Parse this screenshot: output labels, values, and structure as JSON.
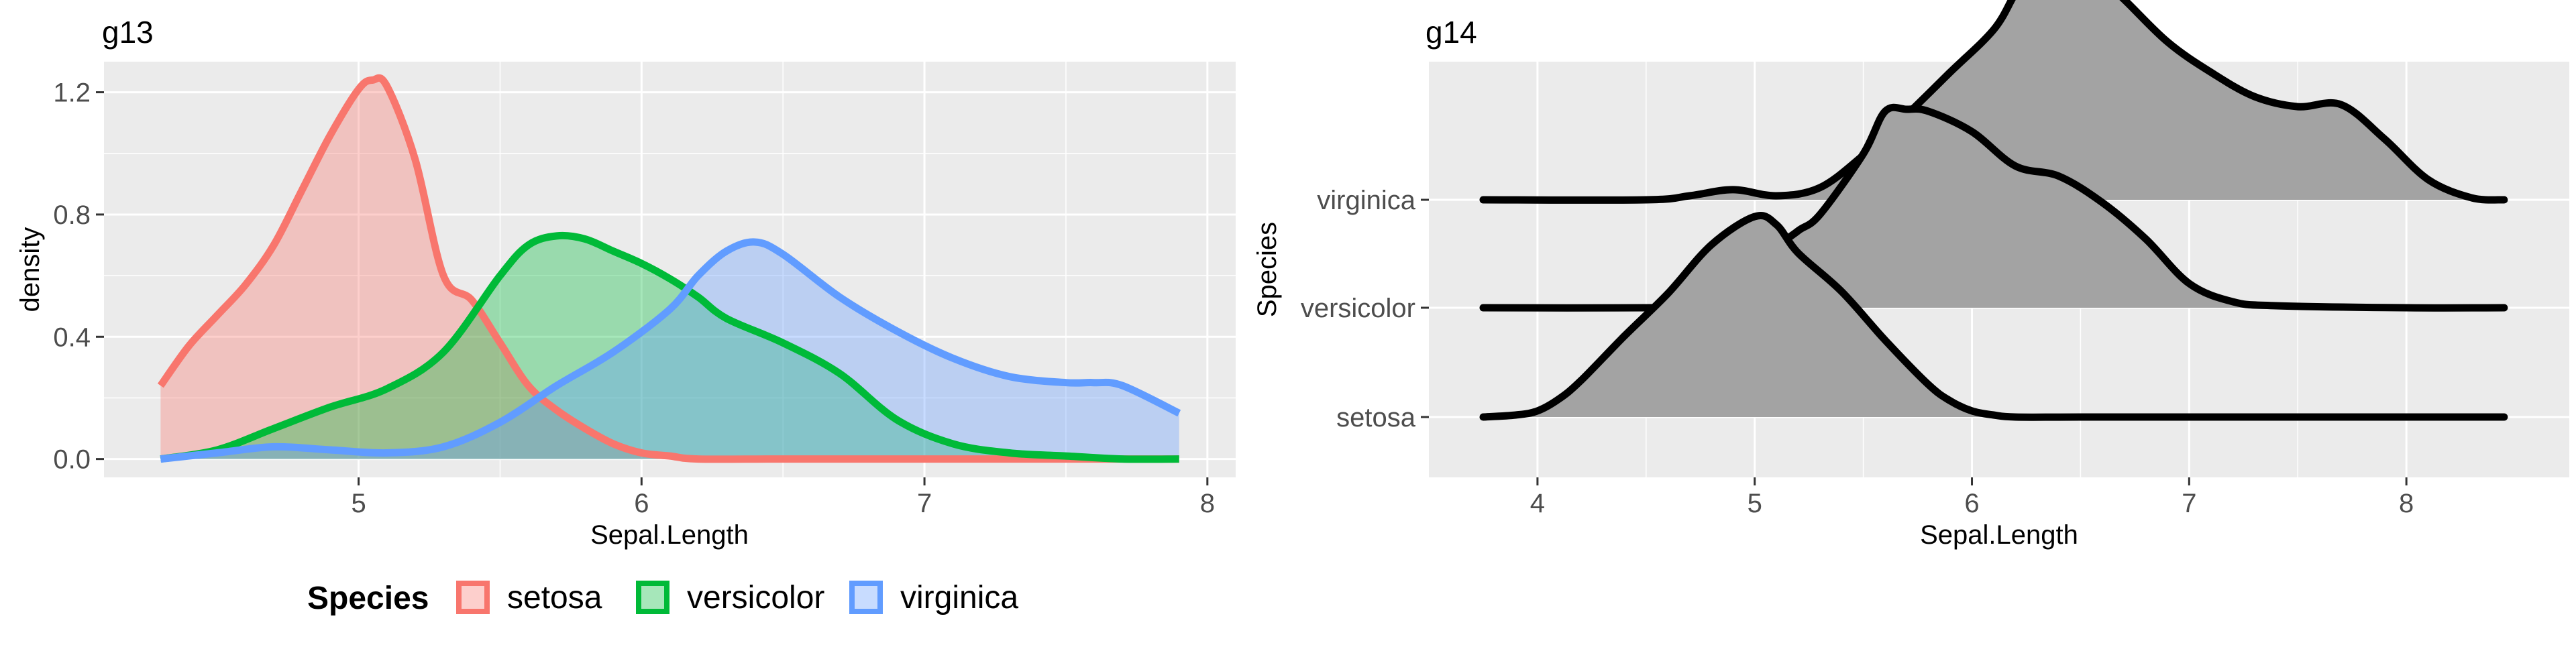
{
  "chart_data": [
    {
      "type": "area",
      "title": "g13",
      "xlabel": "Sepal.Length",
      "ylabel": "density",
      "xlim": [
        4.1,
        8.1
      ],
      "ylim": [
        -0.06,
        1.3
      ],
      "x_ticks": [
        5,
        6,
        7,
        8
      ],
      "y_ticks": [
        0.0,
        0.4,
        0.8,
        1.2
      ],
      "y_tick_labels": [
        "0.0",
        "0.4",
        "0.8",
        "1.2"
      ],
      "grid": true,
      "legend": {
        "title": "Species",
        "position": "bottom",
        "entries": [
          "setosa",
          "versicolor",
          "virginica"
        ]
      },
      "series": [
        {
          "name": "setosa",
          "color": "#F8766D",
          "x": [
            4.3,
            4.4,
            4.5,
            4.6,
            4.7,
            4.8,
            4.9,
            5.0,
            5.05,
            5.1,
            5.2,
            5.3,
            5.4,
            5.5,
            5.6,
            5.7,
            5.8,
            5.9,
            6.0,
            6.1,
            6.2,
            6.5,
            7.0,
            7.5,
            7.9
          ],
          "y": [
            0.24,
            0.37,
            0.47,
            0.57,
            0.7,
            0.88,
            1.06,
            1.21,
            1.24,
            1.22,
            0.98,
            0.6,
            0.52,
            0.38,
            0.24,
            0.16,
            0.1,
            0.05,
            0.02,
            0.01,
            0.0,
            0.0,
            0.0,
            0.0,
            0.0
          ]
        },
        {
          "name": "versicolor",
          "color": "#00BA38",
          "x": [
            4.3,
            4.5,
            4.7,
            4.9,
            5.1,
            5.3,
            5.5,
            5.6,
            5.7,
            5.8,
            5.9,
            6.0,
            6.1,
            6.2,
            6.3,
            6.5,
            6.7,
            6.9,
            7.1,
            7.3,
            7.5,
            7.7,
            7.9
          ],
          "y": [
            0.0,
            0.03,
            0.1,
            0.17,
            0.23,
            0.35,
            0.6,
            0.7,
            0.73,
            0.72,
            0.68,
            0.64,
            0.59,
            0.53,
            0.46,
            0.38,
            0.28,
            0.13,
            0.05,
            0.02,
            0.01,
            0.0,
            0.0
          ]
        },
        {
          "name": "virginica",
          "color": "#619CFF",
          "x": [
            4.3,
            4.5,
            4.7,
            4.9,
            5.1,
            5.3,
            5.5,
            5.7,
            5.9,
            6.1,
            6.2,
            6.3,
            6.4,
            6.5,
            6.7,
            6.9,
            7.1,
            7.3,
            7.5,
            7.6,
            7.7,
            7.9
          ],
          "y": [
            0.0,
            0.02,
            0.04,
            0.03,
            0.02,
            0.04,
            0.12,
            0.24,
            0.35,
            0.49,
            0.6,
            0.68,
            0.71,
            0.67,
            0.53,
            0.42,
            0.33,
            0.27,
            0.25,
            0.25,
            0.24,
            0.15
          ]
        }
      ]
    },
    {
      "type": "area",
      "title": "g14",
      "xlabel": "Sepal.Length",
      "ylabel": "Species",
      "xlim": [
        3.5,
        8.75
      ],
      "x_ticks": [
        4,
        5,
        6,
        7,
        8
      ],
      "categories": [
        "setosa",
        "versicolor",
        "virginica"
      ],
      "grid": true,
      "fill_color": "#A3A3A3",
      "line_color": "#000000",
      "ridges": [
        {
          "name": "setosa",
          "x": [
            3.75,
            3.9,
            4.0,
            4.1,
            4.2,
            4.4,
            4.6,
            4.8,
            5.0,
            5.1,
            5.2,
            5.4,
            5.6,
            5.8,
            5.9,
            6.0,
            6.1,
            6.2,
            6.5,
            7.0,
            8.0,
            8.45
          ],
          "h": [
            0.0,
            0.01,
            0.03,
            0.09,
            0.18,
            0.4,
            0.61,
            0.85,
            0.99,
            0.95,
            0.81,
            0.62,
            0.38,
            0.16,
            0.08,
            0.03,
            0.01,
            0.0,
            0.0,
            0.0,
            0.0,
            0.0
          ]
        },
        {
          "name": "versicolor",
          "x": [
            3.75,
            4.5,
            4.7,
            4.9,
            5.0,
            5.1,
            5.2,
            5.3,
            5.5,
            5.6,
            5.7,
            5.8,
            6.0,
            6.2,
            6.4,
            6.6,
            6.8,
            7.0,
            7.2,
            7.4,
            8.0,
            8.45
          ],
          "h": [
            0.0,
            0.0,
            0.01,
            0.05,
            0.12,
            0.29,
            0.38,
            0.46,
            0.76,
            0.97,
            0.98,
            0.97,
            0.87,
            0.7,
            0.65,
            0.52,
            0.34,
            0.12,
            0.03,
            0.01,
            0.0,
            0.0
          ]
        },
        {
          "name": "virginica",
          "x": [
            3.75,
            4.5,
            4.7,
            4.9,
            5.1,
            5.3,
            5.5,
            5.7,
            5.9,
            6.1,
            6.2,
            6.3,
            6.4,
            6.5,
            6.7,
            6.9,
            7.1,
            7.3,
            7.5,
            7.7,
            7.9,
            8.1,
            8.3,
            8.45
          ],
          "h": [
            0.0,
            0.0,
            0.02,
            0.05,
            0.02,
            0.06,
            0.22,
            0.42,
            0.63,
            0.84,
            1.02,
            1.18,
            1.26,
            1.19,
            0.99,
            0.78,
            0.63,
            0.51,
            0.46,
            0.47,
            0.3,
            0.1,
            0.01,
            0.0
          ]
        }
      ]
    }
  ]
}
